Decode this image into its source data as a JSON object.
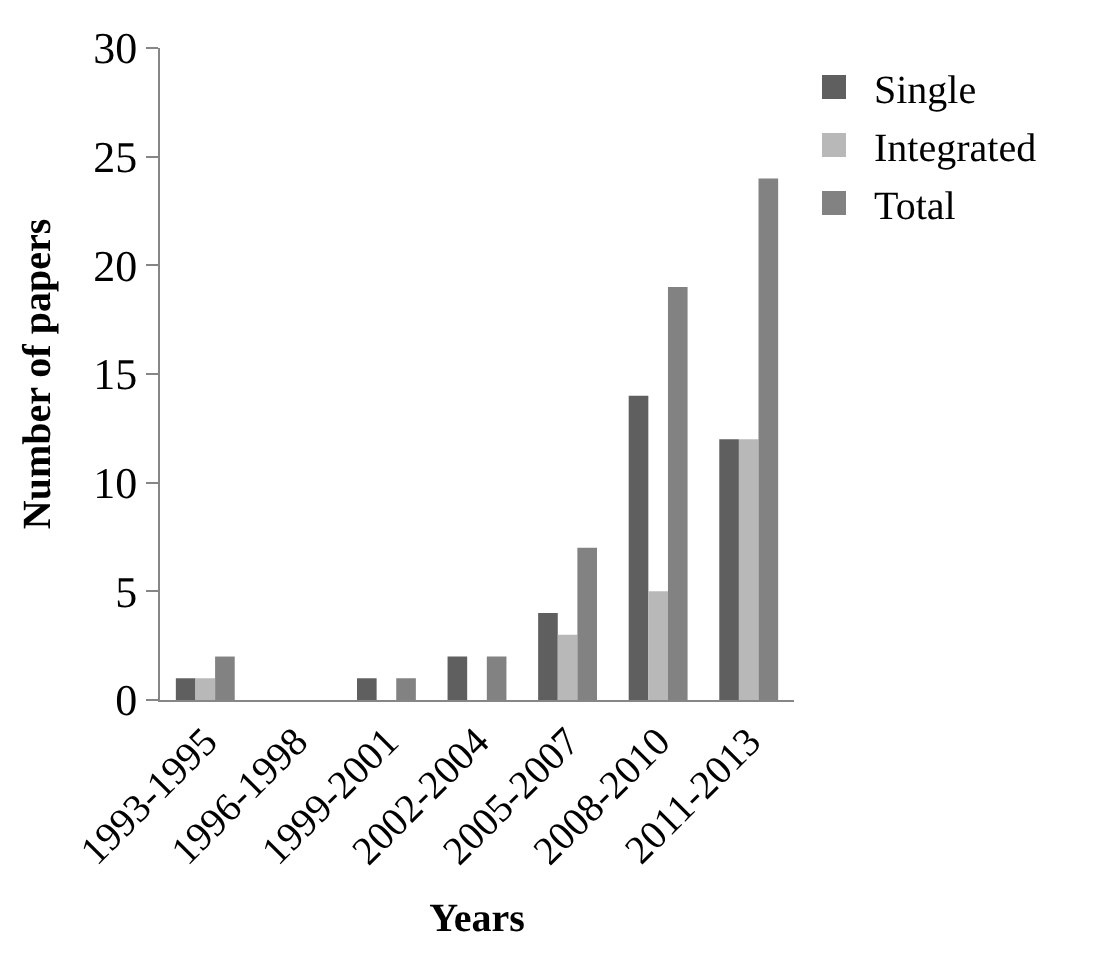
{
  "chart_data": {
    "type": "bar",
    "xlabel": "Years",
    "ylabel": "Number of papers",
    "categories": [
      "1993-1995",
      "1996-1998",
      "1999-2001",
      "2002-2004",
      "2005-2007",
      "2008-2010",
      "2011-2013"
    ],
    "series": [
      {
        "name": "Single",
        "color": "#5f5f5f",
        "values": [
          1,
          0,
          1,
          2,
          4,
          14,
          12
        ]
      },
      {
        "name": "Integrated",
        "color": "#b8b8b8",
        "values": [
          1,
          0,
          0,
          0,
          3,
          5,
          12
        ]
      },
      {
        "name": "Total",
        "color": "#828282",
        "values": [
          2,
          0,
          1,
          2,
          7,
          19,
          24
        ]
      }
    ],
    "ylim": [
      0,
      30
    ],
    "yticks": [
      0,
      5,
      10,
      15,
      20,
      25,
      30
    ],
    "grid": false,
    "legend": "top right"
  }
}
